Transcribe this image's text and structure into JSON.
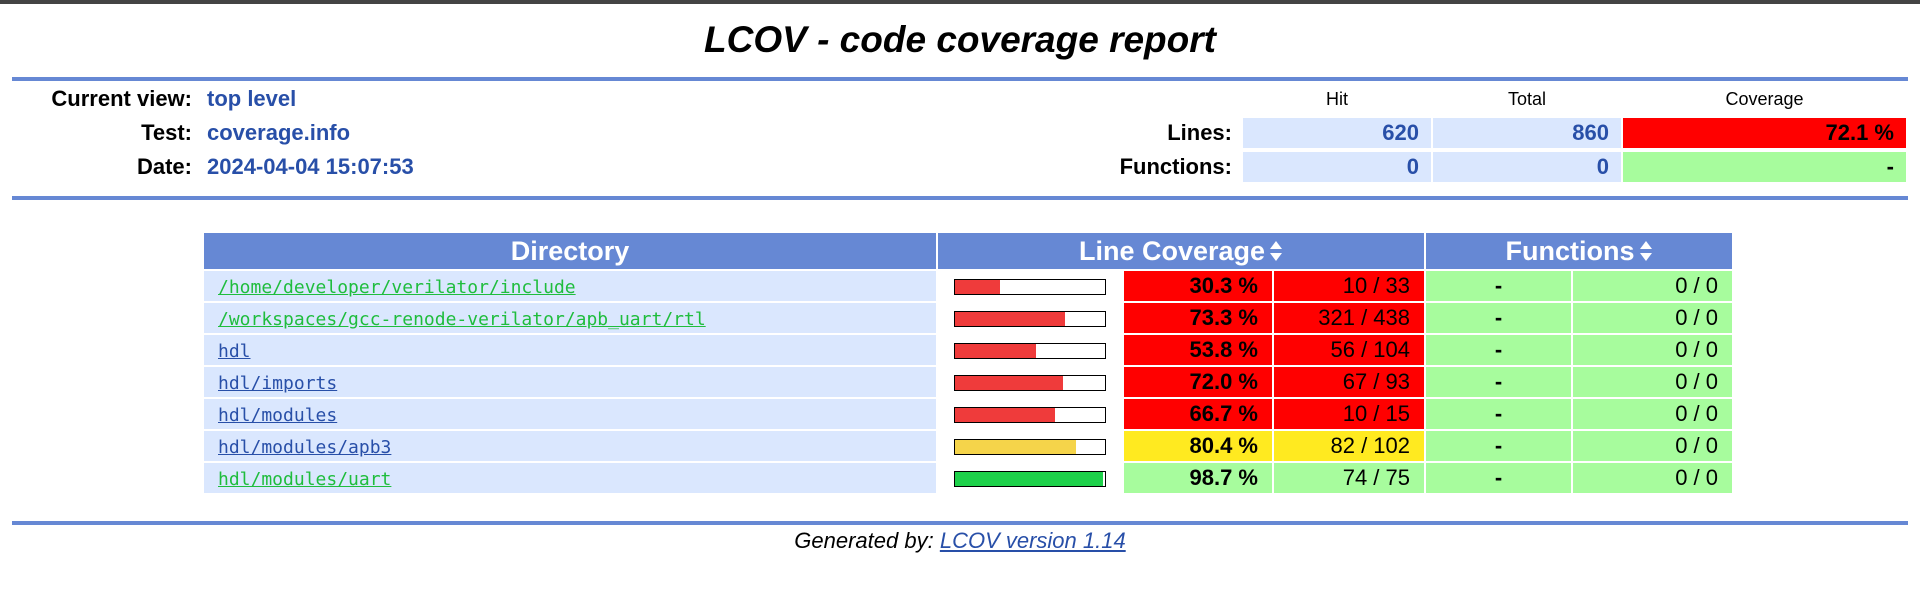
{
  "title": "LCOV - code coverage report",
  "header": {
    "current_view_label": "Current view:",
    "current_view": "top level",
    "test_label": "Test:",
    "test": "coverage.info",
    "date_label": "Date:",
    "date": "2024-04-04 15:07:53"
  },
  "summary": {
    "col_hit": "Hit",
    "col_total": "Total",
    "col_coverage": "Coverage",
    "lines_label": "Lines:",
    "lines_hit": "620",
    "lines_total": "860",
    "lines_coverage": "72.1 %",
    "functions_label": "Functions:",
    "functions_hit": "0",
    "functions_total": "0",
    "functions_coverage": "-"
  },
  "table": {
    "col_directory": "Directory",
    "col_line_coverage": "Line Coverage",
    "col_functions": "Functions",
    "rows": [
      {
        "dir": "/home/developer/verilator/include",
        "pct": "30.3 %",
        "frac": 0.303,
        "lines": "10 / 33",
        "fn_pct": "-",
        "fn": "0 / 0",
        "level": "lo",
        "link": "hi"
      },
      {
        "dir": "/workspaces/gcc-renode-verilator/apb_uart/rtl",
        "pct": "73.3 %",
        "frac": 0.733,
        "lines": "321 / 438",
        "fn_pct": "-",
        "fn": "0 / 0",
        "level": "lo",
        "link": "hi"
      },
      {
        "dir": "hdl",
        "pct": "53.8 %",
        "frac": 0.538,
        "lines": "56 / 104",
        "fn_pct": "-",
        "fn": "0 / 0",
        "level": "lo",
        "link": "lo"
      },
      {
        "dir": "hdl/imports",
        "pct": "72.0 %",
        "frac": 0.72,
        "lines": "67 / 93",
        "fn_pct": "-",
        "fn": "0 / 0",
        "level": "lo",
        "link": "lo"
      },
      {
        "dir": "hdl/modules",
        "pct": "66.7 %",
        "frac": 0.667,
        "lines": "10 / 15",
        "fn_pct": "-",
        "fn": "0 / 0",
        "level": "lo",
        "link": "lo"
      },
      {
        "dir": "hdl/modules/apb3",
        "pct": "80.4 %",
        "frac": 0.804,
        "lines": "82 / 102",
        "fn_pct": "-",
        "fn": "0 / 0",
        "level": "med",
        "link": "lo"
      },
      {
        "dir": "hdl/modules/uart",
        "pct": "98.7 %",
        "frac": 0.987,
        "lines": "74 / 75",
        "fn_pct": "-",
        "fn": "0 / 0",
        "level": "hi",
        "link": "hi"
      }
    ]
  },
  "colors": {
    "lo": "#ff0000",
    "med": "#ffea20",
    "hi": "#a7fc9d",
    "bar_lo": "#ef3b3b",
    "bar_med": "#f5d44a",
    "bar_hi": "#1dd14a",
    "ruler": "#6688d4"
  },
  "footer": {
    "prefix": "Generated by: ",
    "link": "LCOV version 1.14"
  }
}
